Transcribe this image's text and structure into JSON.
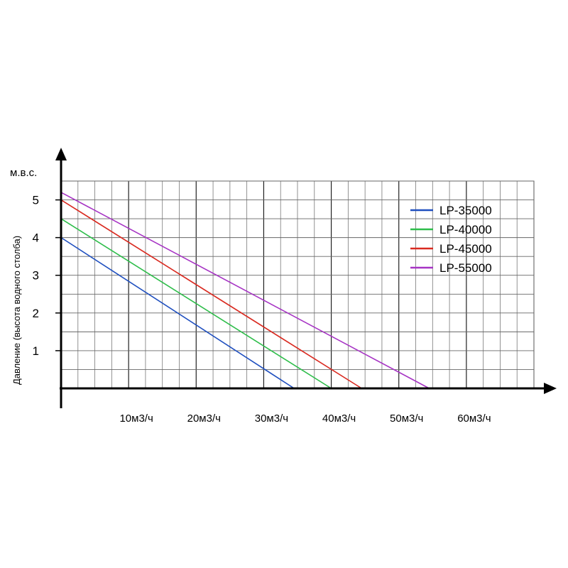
{
  "chart_data": {
    "type": "line",
    "ylabel": "Давление (высота водного столба)",
    "y_unit": "м.в.с.",
    "xlim": [
      0,
      70
    ],
    "ylim": [
      0,
      5.5
    ],
    "x_ticks": [
      {
        "value": 10,
        "label": "10м3/ч"
      },
      {
        "value": 20,
        "label": "20м3/ч"
      },
      {
        "value": 30,
        "label": "30м3/ч"
      },
      {
        "value": 40,
        "label": "40м3/ч"
      },
      {
        "value": 50,
        "label": "50м3/ч"
      },
      {
        "value": 60,
        "label": "60м3/ч"
      }
    ],
    "y_ticks": [
      {
        "value": 1,
        "label": "1"
      },
      {
        "value": 2,
        "label": "2"
      },
      {
        "value": 3,
        "label": "3"
      },
      {
        "value": 4,
        "label": "4"
      },
      {
        "value": 5,
        "label": "5"
      }
    ],
    "grid": true,
    "legend_position": "top-right",
    "series": [
      {
        "name": "LP-35000",
        "color": "#1f4fbf",
        "points": [
          [
            0,
            4.0
          ],
          [
            34.5,
            0
          ]
        ]
      },
      {
        "name": "LP-40000",
        "color": "#2ebd4a",
        "points": [
          [
            0,
            4.5
          ],
          [
            40,
            0
          ]
        ]
      },
      {
        "name": "LP-45000",
        "color": "#d92a20",
        "points": [
          [
            0,
            5.0
          ],
          [
            44.5,
            0
          ]
        ]
      },
      {
        "name": "LP-55000",
        "color": "#a633c4",
        "points": [
          [
            0,
            5.2
          ],
          [
            54.5,
            0
          ]
        ]
      }
    ]
  }
}
